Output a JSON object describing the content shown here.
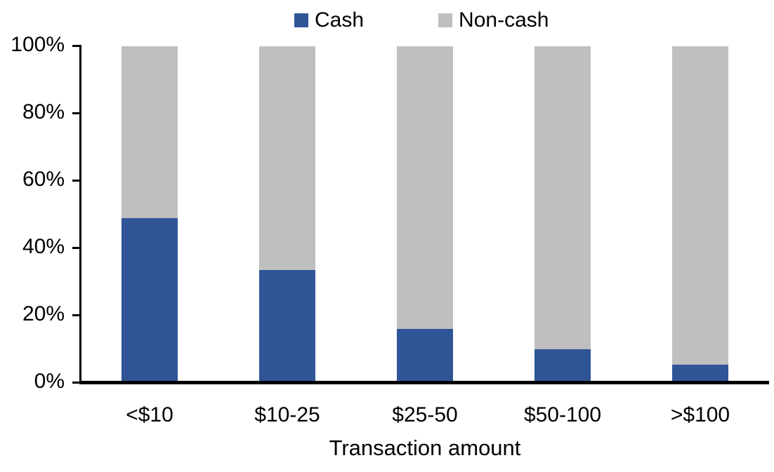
{
  "chart_data": {
    "type": "bar",
    "stacked": true,
    "title": "",
    "xlabel": "Transaction amount",
    "ylabel": "",
    "categories": [
      "<$10",
      "$10-25",
      "$25-50",
      "$50-100",
      ">$100"
    ],
    "series": [
      {
        "name": "Cash",
        "color": "#2F5597",
        "values": [
          49,
          33.5,
          16,
          10,
          5.5
        ]
      },
      {
        "name": "Non-cash",
        "color": "#BFBFBF",
        "values": [
          51,
          66.5,
          84,
          90,
          94.5
        ]
      }
    ],
    "ylim": [
      0,
      100
    ],
    "y_ticks": [
      "0%",
      "20%",
      "40%",
      "60%",
      "80%",
      "100%"
    ],
    "legend_position": "top",
    "grid": false,
    "axis_color": "#000000",
    "background_color": "#FFFFFF"
  }
}
